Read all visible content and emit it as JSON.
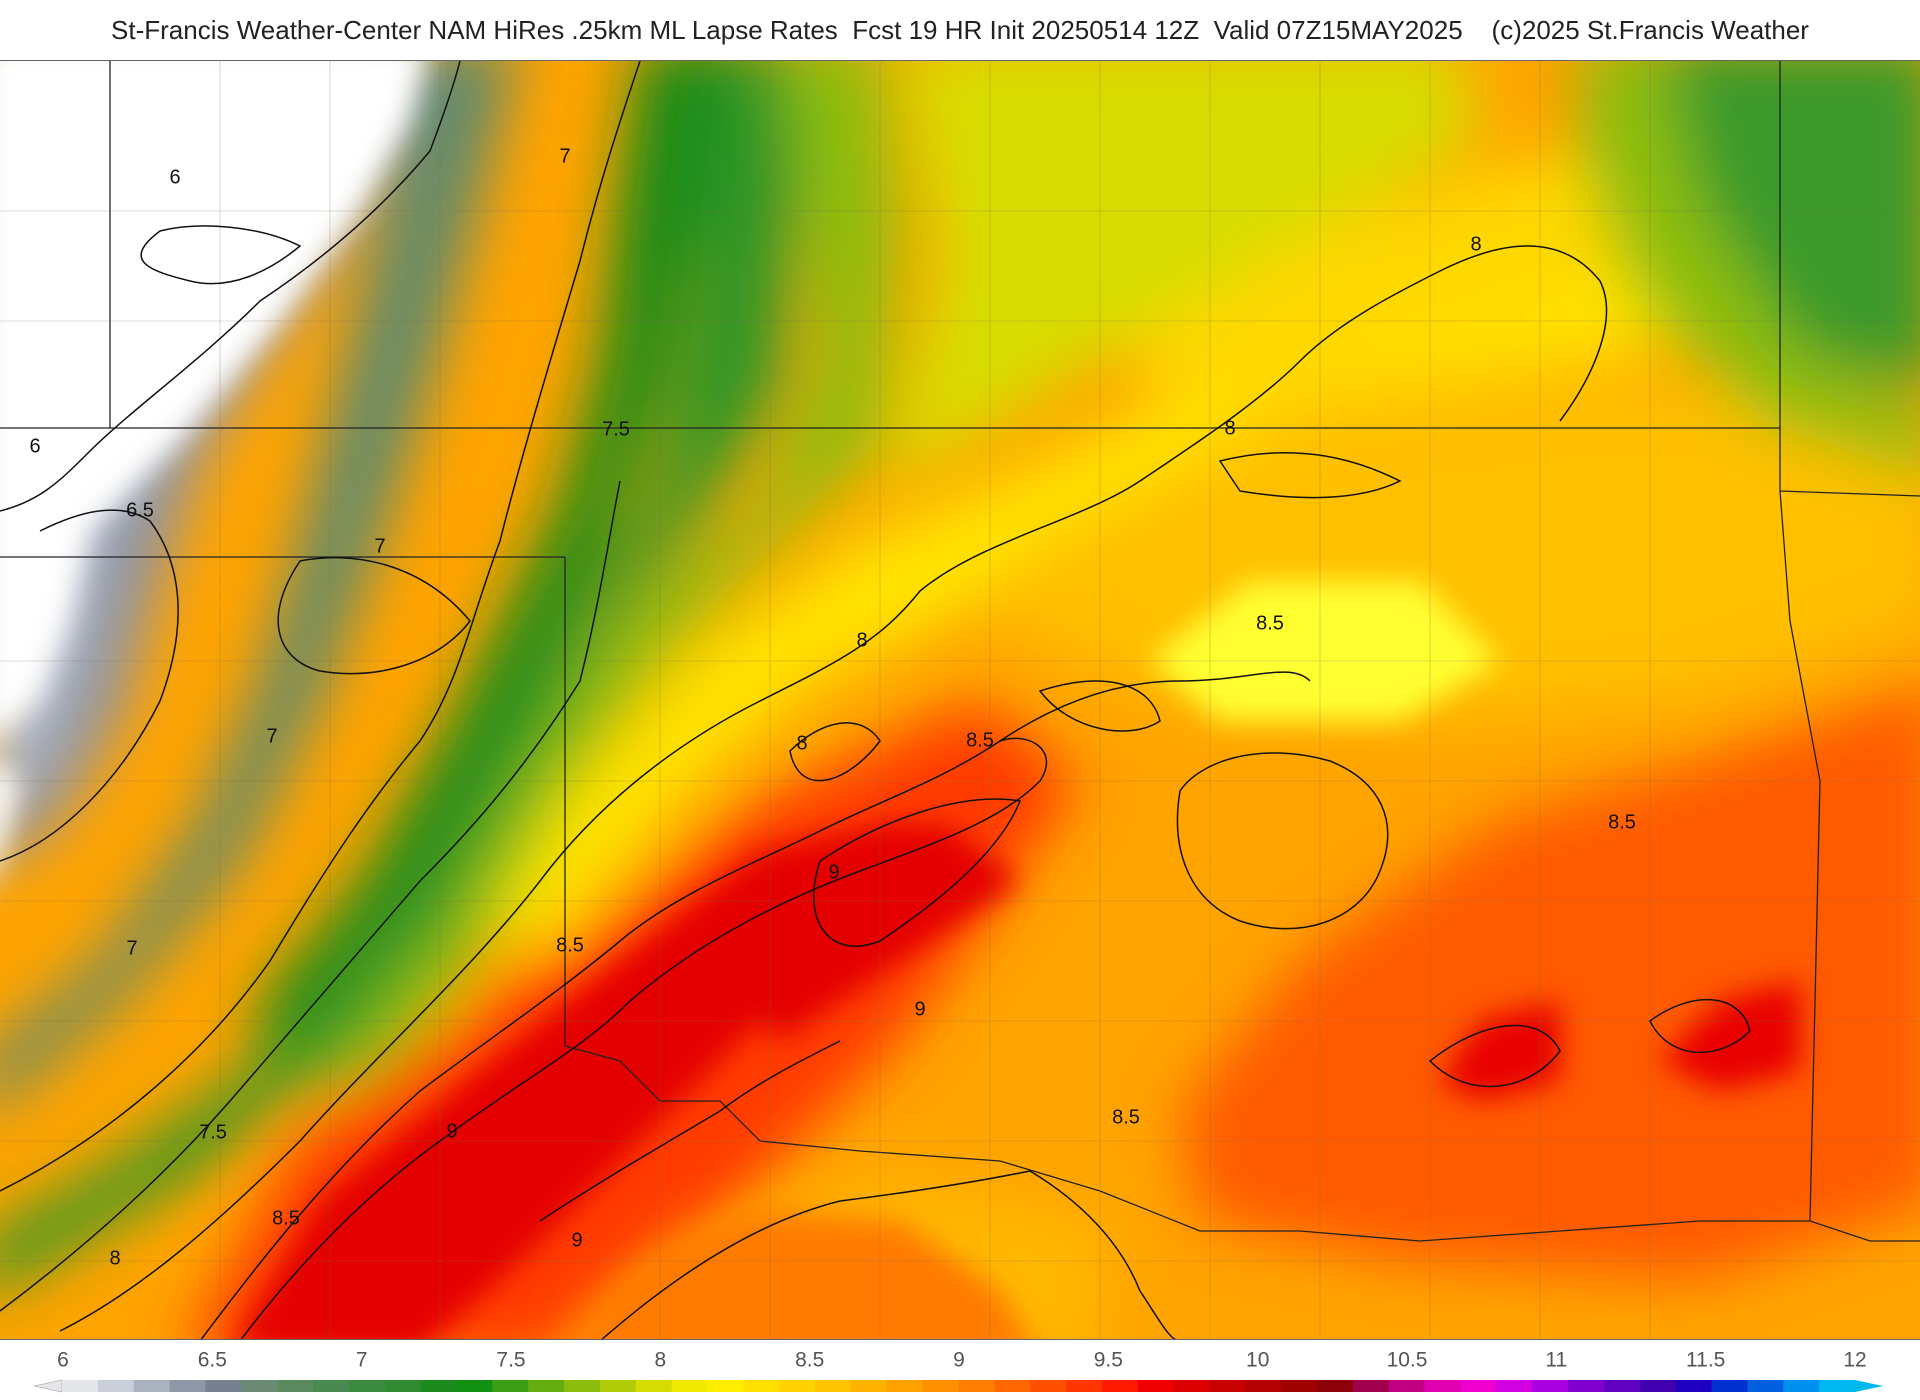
{
  "header": {
    "title": "St-Francis Weather-Center NAM HiRes .25km ML Lapse Rates  Fcst 19 HR Init 20250514 12Z  Valid 07Z15MAY2025    (c)2025 St.Francis Weather"
  },
  "contour_labels": [
    "6",
    "6",
    "6.5",
    "7",
    "7",
    "7",
    "7",
    "7.5",
    "7.5",
    "8",
    "8",
    "8",
    "8",
    "8",
    "8.5",
    "8.5",
    "8.5",
    "8.5",
    "8.5",
    "8.5",
    "9",
    "9",
    "9",
    "9"
  ],
  "legend": {
    "ticks": [
      "6",
      "6.5",
      "7",
      "7.5",
      "8",
      "8.5",
      "9",
      "9.5",
      "10",
      "10.5",
      "11",
      "11.5",
      "12"
    ],
    "colors": [
      "#e4e6ea",
      "#c9ced8",
      "#aab2c0",
      "#8e97a8",
      "#77808f",
      "#6b8a73",
      "#5a8a5e",
      "#4a8a52",
      "#3b8a40",
      "#2f8a30",
      "#1d8a1e",
      "#119012",
      "#3c9e16",
      "#66ad10",
      "#8cbd0c",
      "#b0cc08",
      "#d4dc04",
      "#f0ea00",
      "#ffee00",
      "#ffe000",
      "#ffd200",
      "#ffc300",
      "#ffb300",
      "#ffa200",
      "#ff9000",
      "#ff7d00",
      "#ff6800",
      "#ff5000",
      "#ff3600",
      "#ff1a00",
      "#f00000",
      "#dc0000",
      "#c80000",
      "#b40000",
      "#a00000",
      "#8c0008",
      "#a0004c",
      "#c00080",
      "#e000b0",
      "#f000d0",
      "#d000e0",
      "#a800e0",
      "#8000d0",
      "#6000c0",
      "#4000b0",
      "#2000c0",
      "#0030d0",
      "#0060e0",
      "#0090f0",
      "#00b8f0"
    ]
  },
  "colors": {
    "contour": "#111111",
    "boundary": "#222222"
  }
}
